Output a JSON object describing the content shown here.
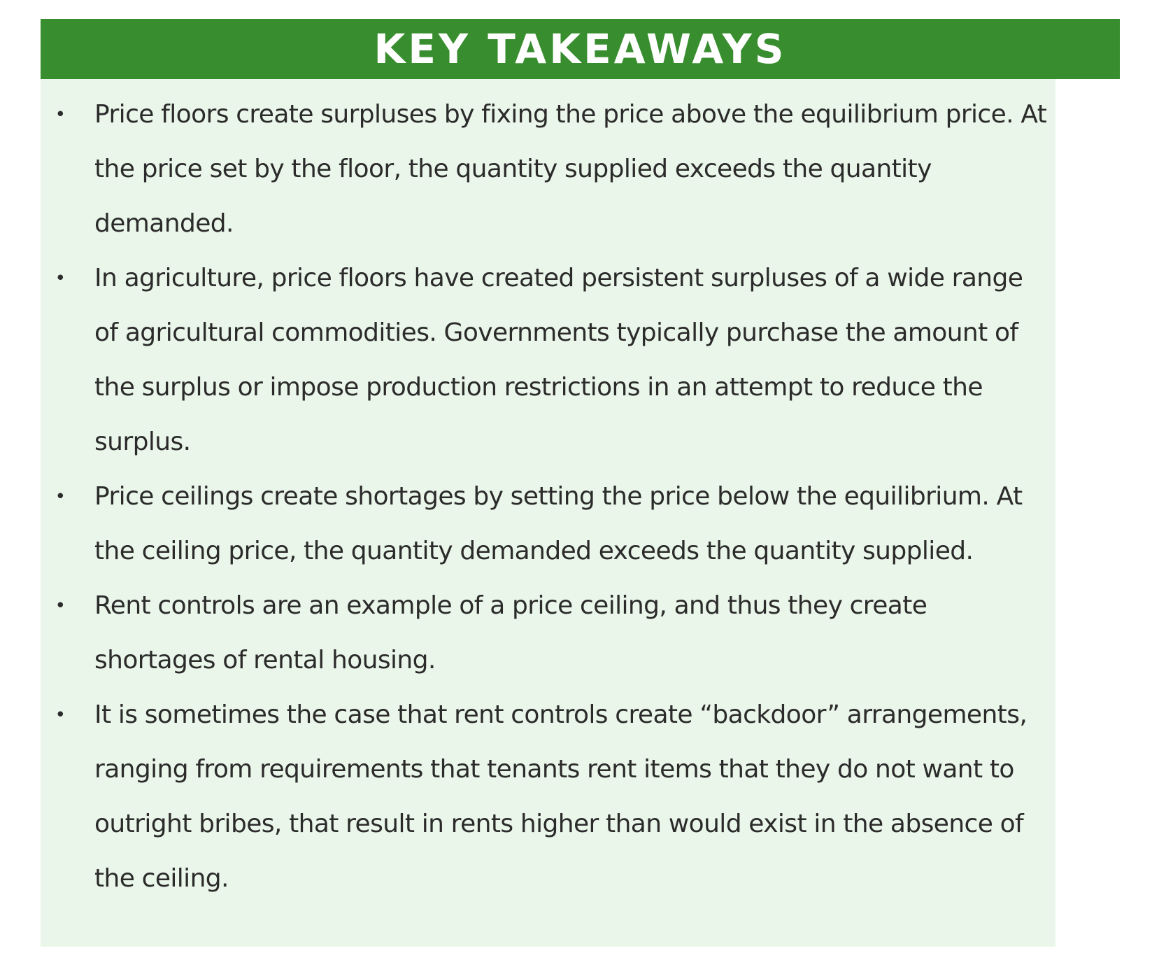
{
  "header": {
    "title": "KEY TAKEAWAYS"
  },
  "colors": {
    "header_bg": "#388e2f",
    "panel_bg": "#eaf6e9",
    "text": "#2b2b2b"
  },
  "bullet_glyph": "•",
  "takeaways": [
    "Price floors create surpluses by fixing the price above the equilibrium price. At the price set by the floor, the quantity supplied exceeds the quantity demanded.",
    "In agriculture, price floors have created persistent surpluses of a wide range of agricultural commodities. Governments typically purchase the amount of the surplus or impose production restrictions in an attempt to reduce the surplus.",
    "Price ceilings create shortages by setting the price below the equilibrium. At the ceiling price, the quantity demanded exceeds the quantity supplied.",
    "Rent controls are an example of a price ceiling, and thus they create shortages of rental housing.",
    "It is sometimes the case that rent controls create “backdoor” arrangements, ranging from requirements that tenants rent items that they do not want to outright bribes, that result in rents higher than would exist in the absence of the ceiling."
  ]
}
